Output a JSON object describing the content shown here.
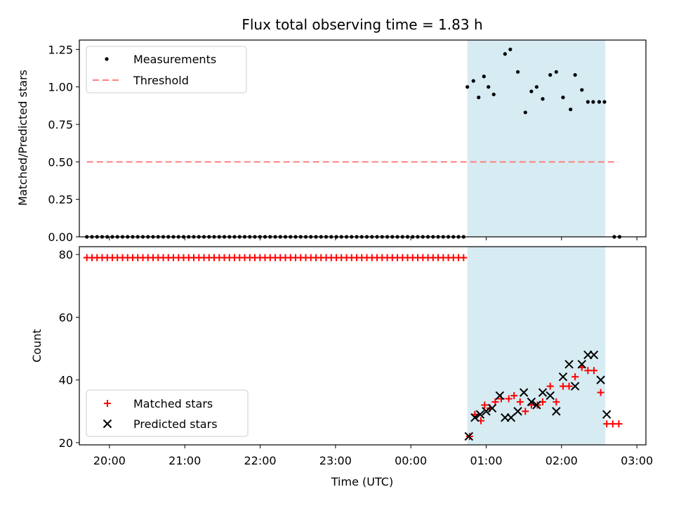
{
  "chart_data": [
    {
      "type": "scatter",
      "title": "Flux total observing time = 1.83 h",
      "ylabel": "Matched/Predicted stars",
      "xlabel": "",
      "x_unit": "hours from 00:00 UTC",
      "xlim": [
        -4.4,
        3.12
      ],
      "ylim": [
        0,
        1.3125
      ],
      "yticks": [
        "0.00",
        "0.25",
        "0.50",
        "0.75",
        "1.00",
        "1.25"
      ],
      "legend_position": "upper-left",
      "shaded_interval": [
        0.75,
        2.58
      ],
      "shade_color": "#add8e6",
      "threshold": {
        "name": "Threshold",
        "y": 0.5,
        "x_range": [
          -4.3,
          2.75
        ],
        "color": "#ff7f7f"
      },
      "series": [
        {
          "name": "Measurements",
          "color": "#000000",
          "zero_start": -4.3,
          "zero_end": 0.7,
          "zero_count": 75,
          "points": [
            [
              0.75,
              1.0
            ],
            [
              0.83,
              1.04
            ],
            [
              0.9,
              0.93
            ],
            [
              0.97,
              1.07
            ],
            [
              1.03,
              1.0
            ],
            [
              1.1,
              0.95
            ],
            [
              1.25,
              1.22
            ],
            [
              1.32,
              1.25
            ],
            [
              1.42,
              1.1
            ],
            [
              1.52,
              0.83
            ],
            [
              1.6,
              0.97
            ],
            [
              1.67,
              1.0
            ],
            [
              1.75,
              0.92
            ],
            [
              1.85,
              1.08
            ],
            [
              1.93,
              1.1
            ],
            [
              2.02,
              0.93
            ],
            [
              2.12,
              0.85
            ],
            [
              2.18,
              1.08
            ],
            [
              2.27,
              0.98
            ],
            [
              2.35,
              0.9
            ],
            [
              2.42,
              0.9
            ],
            [
              2.5,
              0.9
            ],
            [
              2.57,
              0.9
            ],
            [
              2.7,
              0.0
            ],
            [
              2.77,
              0.0
            ]
          ]
        }
      ]
    },
    {
      "type": "scatter",
      "title": "",
      "ylabel": "Count",
      "xlabel": "Time (UTC)",
      "xlim": [
        -4.4,
        3.12
      ],
      "ylim": [
        19.3,
        82.5
      ],
      "yticks": [
        "20",
        "40",
        "60",
        "80"
      ],
      "xticks": [
        "20:00",
        "21:00",
        "22:00",
        "23:00",
        "00:00",
        "01:00",
        "02:00",
        "03:00"
      ],
      "xtick_hours": [
        -4,
        -3,
        -2,
        -1,
        0,
        1,
        2,
        3
      ],
      "legend_position": "lower-left",
      "shaded_interval": [
        0.75,
        2.58
      ],
      "shade_color": "#add8e6",
      "series": [
        {
          "name": "Matched stars",
          "marker": "plus",
          "color": "#ff0000",
          "const_value": 79,
          "const_start": -4.3,
          "const_end": 0.7,
          "const_count": 75,
          "points": [
            [
              0.78,
              22
            ],
            [
              0.85,
              29
            ],
            [
              0.93,
              27
            ],
            [
              0.98,
              32
            ],
            [
              1.05,
              31
            ],
            [
              1.12,
              33
            ],
            [
              1.2,
              34
            ],
            [
              1.3,
              34
            ],
            [
              1.37,
              35
            ],
            [
              1.45,
              33
            ],
            [
              1.52,
              30
            ],
            [
              1.6,
              32
            ],
            [
              1.68,
              32
            ],
            [
              1.75,
              33
            ],
            [
              1.85,
              38
            ],
            [
              1.93,
              33
            ],
            [
              2.02,
              38
            ],
            [
              2.1,
              38
            ],
            [
              2.18,
              41
            ],
            [
              2.27,
              44
            ],
            [
              2.35,
              43
            ],
            [
              2.43,
              43
            ],
            [
              2.52,
              36
            ],
            [
              2.6,
              26
            ],
            [
              2.68,
              26
            ],
            [
              2.76,
              26
            ]
          ]
        },
        {
          "name": "Predicted stars",
          "marker": "x",
          "color": "#000000",
          "points": [
            [
              0.77,
              22
            ],
            [
              0.85,
              28
            ],
            [
              0.92,
              29
            ],
            [
              1.0,
              30
            ],
            [
              1.08,
              31
            ],
            [
              1.18,
              35
            ],
            [
              1.25,
              28
            ],
            [
              1.33,
              28
            ],
            [
              1.42,
              30
            ],
            [
              1.5,
              36
            ],
            [
              1.6,
              33
            ],
            [
              1.67,
              32
            ],
            [
              1.75,
              36
            ],
            [
              1.85,
              35
            ],
            [
              1.93,
              30
            ],
            [
              2.02,
              41
            ],
            [
              2.1,
              45
            ],
            [
              2.18,
              38
            ],
            [
              2.27,
              45
            ],
            [
              2.35,
              48
            ],
            [
              2.43,
              48
            ],
            [
              2.52,
              40
            ],
            [
              2.6,
              29
            ]
          ]
        }
      ]
    }
  ]
}
